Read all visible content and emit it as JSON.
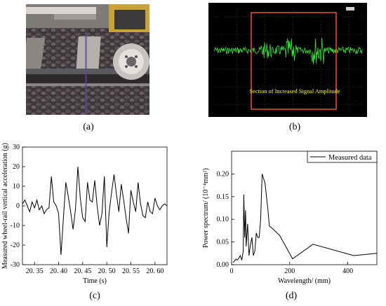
{
  "panels": {
    "a": {
      "label": "(a)"
    },
    "b": {
      "label": "(b)",
      "annotation": "Section of Increased Signal Amplitude",
      "colors": {
        "background": "#000000",
        "signal": "#3dff3d",
        "box": "#e04a3a",
        "annotation": "#ffff00",
        "grid": "#6a6a6a"
      }
    },
    "c": {
      "label": "(c)"
    },
    "d": {
      "label": "(d)"
    }
  },
  "chart_data": [
    {
      "panel": "c",
      "type": "line",
      "xlabel": "Time (s)",
      "ylabel": "Measured wheel-rail vertical acceleration (g)",
      "xlim": [
        20.325,
        20.625
      ],
      "ylim": [
        -30,
        30
      ],
      "xticks": [
        20.35,
        20.4,
        20.45,
        20.5,
        20.55,
        20.6
      ],
      "xtick_labels": [
        "20. 35",
        "20. 40",
        "20. 45",
        "20. 50",
        "20. 55",
        "20. 60"
      ],
      "yticks": [
        -30,
        -20,
        -10,
        0,
        10,
        20,
        30
      ],
      "series": [
        {
          "x": [
            20.325,
            20.33,
            20.335,
            20.34,
            20.345,
            20.35,
            20.355,
            20.36,
            20.365,
            20.37,
            20.375,
            20.38,
            20.385,
            20.39,
            20.395,
            20.4,
            20.405,
            20.41,
            20.415,
            20.42,
            20.425,
            20.43,
            20.435,
            20.44,
            20.445,
            20.45,
            20.455,
            20.46,
            20.465,
            20.47,
            20.475,
            20.48,
            20.485,
            20.49,
            20.495,
            20.5,
            20.505,
            20.51,
            20.515,
            20.52,
            20.525,
            20.53,
            20.535,
            20.54,
            20.545,
            20.55,
            20.555,
            20.56,
            20.565,
            20.57,
            20.575,
            20.58,
            20.585,
            20.59,
            20.595,
            20.6,
            20.605,
            20.61,
            20.615,
            20.62,
            20.625
          ],
          "y": [
            1,
            3,
            0,
            -3,
            2,
            -1,
            3,
            -2,
            0,
            -4,
            -2,
            -1,
            15,
            2,
            0,
            -4,
            -25,
            -6,
            12,
            5,
            -3,
            -12,
            -2,
            20,
            4,
            -6,
            -8,
            12,
            3,
            2,
            13,
            0,
            -10,
            -4,
            15,
            -21,
            -3,
            7,
            16,
            6,
            -3,
            11,
            3,
            -6,
            -14,
            8,
            2,
            -3,
            12,
            1,
            -5,
            -6,
            2,
            -3,
            -4,
            4,
            0,
            -2,
            0,
            1,
            0
          ]
        }
      ]
    },
    {
      "panel": "d",
      "type": "line",
      "xlabel": "Wavelength/ (mm)",
      "ylabel": "Power spectrum/ (10⁻⁴mm²)",
      "xlim": [
        0,
        500
      ],
      "ylim": [
        0,
        0.25
      ],
      "xticks": [
        0,
        200,
        400
      ],
      "yticks": [
        0,
        0.05,
        0.1,
        0.15,
        0.2
      ],
      "ytick_labels": [
        "0.00",
        "0.05",
        "0.10",
        "0.15",
        "0.20"
      ],
      "legend": {
        "position": "top-right",
        "entries": [
          "Measured data"
        ]
      },
      "series": [
        {
          "name": "Measured data",
          "x": [
            5,
            10,
            15,
            20,
            25,
            30,
            35,
            40,
            42,
            45,
            48,
            50,
            55,
            60,
            65,
            70,
            75,
            80,
            85,
            90,
            95,
            100,
            105,
            110,
            115,
            120,
            125,
            130,
            140,
            165,
            210,
            280,
            420,
            500
          ],
          "y": [
            0.005,
            0.008,
            0.012,
            0.01,
            0.015,
            0.02,
            0.01,
            0.03,
            0.155,
            0.06,
            0.12,
            0.04,
            0.09,
            0.02,
            0.045,
            0.06,
            0.02,
            0.03,
            0.07,
            0.06,
            0.06,
            0.1,
            0.2,
            0.19,
            0.18,
            0.15,
            0.12,
            0.085,
            0.08,
            0.065,
            0.013,
            0.045,
            0.02,
            0.025
          ]
        }
      ]
    }
  ]
}
